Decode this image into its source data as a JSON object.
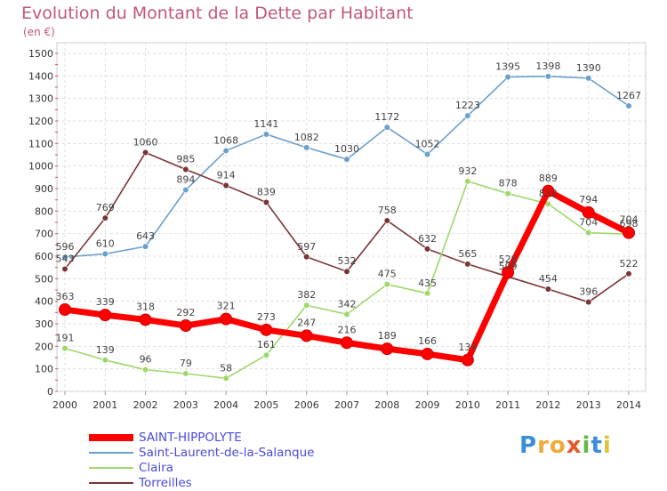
{
  "chart_data": {
    "type": "line",
    "title": "Evolution du Montant de la Dette par Habitant",
    "subtitle": "(en €)",
    "xlabel": "",
    "ylabel": "",
    "x": [
      "2000",
      "2001",
      "2002",
      "2003",
      "2004",
      "2005",
      "2006",
      "2007",
      "2008",
      "2009",
      "2010",
      "2011",
      "2012",
      "2013",
      "2014"
    ],
    "ylim": [
      0,
      1500
    ],
    "yticks": [
      0,
      100,
      200,
      300,
      400,
      500,
      600,
      700,
      800,
      900,
      1000,
      1100,
      1200,
      1300,
      1400,
      1500
    ],
    "ytick_labels": [
      "0",
      "100",
      "200",
      "300",
      "400",
      "500",
      "600",
      "700",
      "800",
      "900",
      "1000",
      "1100",
      "1200",
      "1300",
      "1400",
      "1500"
    ],
    "grid": true,
    "legend_position": "bottom-left",
    "series": [
      {
        "name": "Saint-Laurent-de-la-Salanque",
        "color": "#6b9fcc",
        "values": [
          596,
          610,
          643,
          894,
          1068,
          1141,
          1082,
          1030,
          1172,
          1052,
          1223,
          1395,
          1398,
          1390,
          1267
        ],
        "labels": [
          "596",
          "610",
          "643",
          "894",
          "1068",
          "1141",
          "1082",
          "1030",
          "1172",
          "1052",
          "1223",
          "1395",
          "1398",
          "1390",
          "1267"
        ]
      },
      {
        "name": "Torreilles",
        "color": "#7a3434",
        "values": [
          543,
          769,
          1060,
          985,
          914,
          839,
          597,
          532,
          758,
          632,
          565,
          509,
          454,
          396,
          522
        ],
        "labels": [
          "543",
          "769",
          "1060",
          "985",
          "914",
          "839",
          "597",
          "532",
          "758",
          "632",
          "565",
          "509",
          "454",
          "396",
          "522"
        ]
      },
      {
        "name": "Claira",
        "color": "#9ed86a",
        "values": [
          191,
          139,
          96,
          79,
          58,
          161,
          382,
          342,
          475,
          435,
          932,
          878,
          832,
          704,
          698
        ],
        "labels": [
          "191",
          "139",
          "96",
          "79",
          "58",
          "161",
          "382",
          "342",
          "475",
          "435",
          "932",
          "878",
          "832",
          "704",
          "698"
        ]
      },
      {
        "name": "SAINT-HIPPOLYTE",
        "color": "#ff0000",
        "values": [
          363,
          339,
          318,
          292,
          321,
          273,
          247,
          216,
          189,
          166,
          139,
          528,
          889,
          794,
          704
        ],
        "labels": [
          "363",
          "339",
          "318",
          "292",
          "321",
          "273",
          "247",
          "216",
          "189",
          "166",
          "139",
          "528",
          "889",
          "794",
          "704"
        ]
      }
    ],
    "legend": [
      {
        "name": "SAINT-HIPPOLYTE",
        "color": "#ff0000",
        "line": "thick"
      },
      {
        "name": "Saint-Laurent-de-la-Salanque",
        "color": "#6b9fcc",
        "line": "thin"
      },
      {
        "name": "Claira",
        "color": "#9ed86a",
        "line": "thin"
      },
      {
        "name": "Torreilles",
        "color": "#7a3434",
        "line": "thin"
      }
    ],
    "legend_text_color": "#4a4ae0"
  },
  "brand": {
    "letters": [
      "P",
      "r",
      "o",
      "x",
      "i",
      "t",
      "i"
    ],
    "colors": [
      "#3a8fd8",
      "#f2a93b",
      "#f2a93b",
      "#e45b2a",
      "#67b84a",
      "#3a8fd8",
      "#e0c23a"
    ]
  }
}
